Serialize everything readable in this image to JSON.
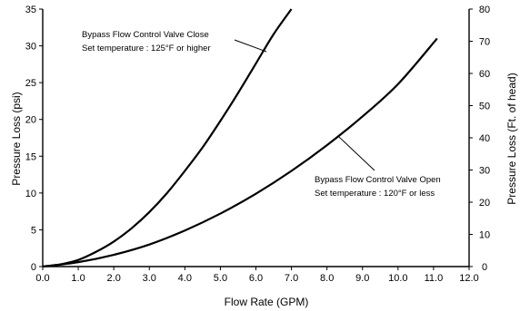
{
  "chart_data": {
    "type": "line",
    "title": "",
    "xlabel": "Flow Rate (GPM)",
    "ylabel": "Pressure Loss (psi)",
    "y2label": "Pressure Loss (Ft. of head)",
    "xlim": [
      0,
      12
    ],
    "ylim": [
      0,
      35
    ],
    "y2lim": [
      0,
      80
    ],
    "grid": false,
    "x_ticks": [
      "0.0",
      "1.0",
      "2.0",
      "3.0",
      "4.0",
      "5.0",
      "6.0",
      "7.0",
      "8.0",
      "9.0",
      "10.0",
      "11.0",
      "12.0"
    ],
    "y_ticks": [
      "0",
      "5",
      "10",
      "15",
      "20",
      "25",
      "30",
      "35"
    ],
    "y2_ticks": [
      "0",
      "10",
      "20",
      "30",
      "40",
      "50",
      "60",
      "70",
      "80"
    ],
    "series": [
      {
        "name": "Bypass Flow Control Valve Close",
        "note": "Set temperature : 125°F or higher",
        "x": [
          0,
          0.5,
          1.0,
          1.5,
          2.0,
          2.5,
          3.0,
          3.5,
          4.0,
          4.5,
          5.0,
          5.5,
          6.0,
          6.5,
          7.0
        ],
        "y": [
          0,
          0.3,
          0.9,
          2.0,
          3.4,
          5.2,
          7.4,
          10.0,
          13.0,
          16.2,
          19.8,
          23.6,
          27.6,
          31.6,
          35.0
        ]
      },
      {
        "name": "Bypass Flow Control Valve Open",
        "note": "Set temperature : 120°F or less",
        "x": [
          0,
          1.0,
          2.0,
          3.0,
          4.0,
          5.0,
          6.0,
          7.0,
          8.0,
          9.0,
          10.0,
          11.1
        ],
        "y": [
          0,
          0.6,
          1.6,
          3.0,
          4.9,
          7.2,
          9.9,
          13.0,
          16.5,
          20.4,
          24.8,
          31.0
        ]
      }
    ]
  }
}
